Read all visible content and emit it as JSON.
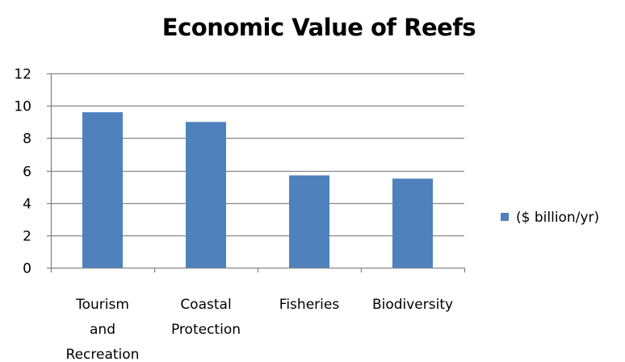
{
  "chart_data": {
    "type": "bar",
    "title": "Economic Value of Reefs",
    "categories": [
      [
        "Tourism",
        "and",
        "Recreation"
      ],
      [
        "Coastal",
        "Protection"
      ],
      [
        "Fisheries"
      ],
      [
        "Biodiversity"
      ]
    ],
    "series": [
      {
        "name": "($ billion/yr)",
        "values": [
          9.6,
          9.0,
          5.7,
          5.5
        ]
      }
    ],
    "ylim": [
      0,
      12
    ],
    "yticks": [
      0,
      2,
      4,
      6,
      8,
      10,
      12
    ],
    "grid": true,
    "legend_position": "right",
    "colors": {
      "bar": "#4f81bd",
      "grid": "#868686",
      "axis": "#868686"
    }
  }
}
